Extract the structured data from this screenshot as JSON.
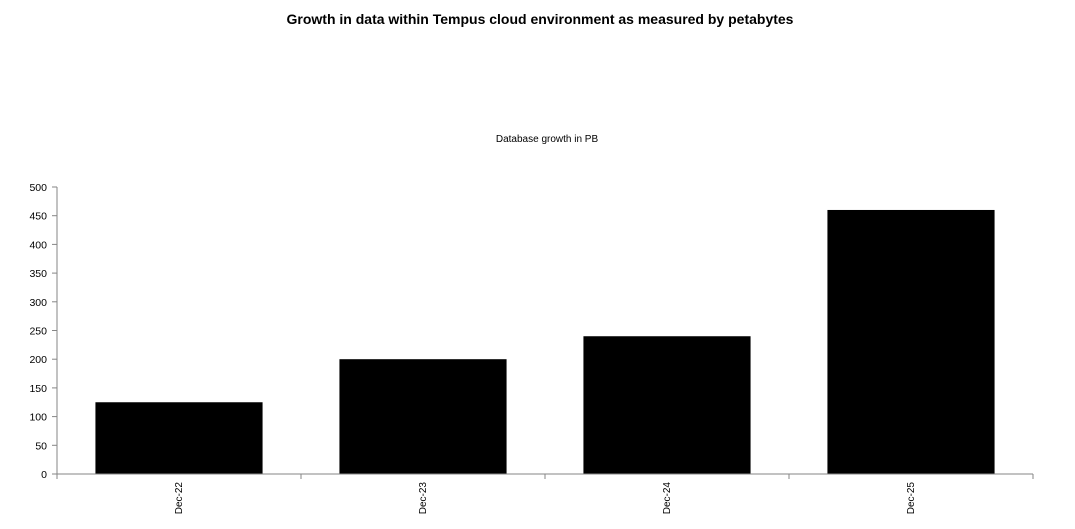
{
  "page": {
    "title": "Growth in data within Tempus cloud environment as measured by petabytes"
  },
  "chart_data": {
    "type": "bar",
    "title": "Database growth in PB",
    "categories": [
      "Dec-22",
      "Dec-23",
      "Dec-24",
      "Dec-25"
    ],
    "values": [
      125,
      200,
      240,
      460
    ],
    "ylim": [
      0,
      500
    ],
    "yticks": [
      0,
      50,
      100,
      150,
      200,
      250,
      300,
      350,
      400,
      450,
      500
    ],
    "xlabel": "",
    "ylabel": "",
    "grid": false,
    "legend": "none",
    "bar_color": "#000000",
    "axis_color": "#868686"
  }
}
